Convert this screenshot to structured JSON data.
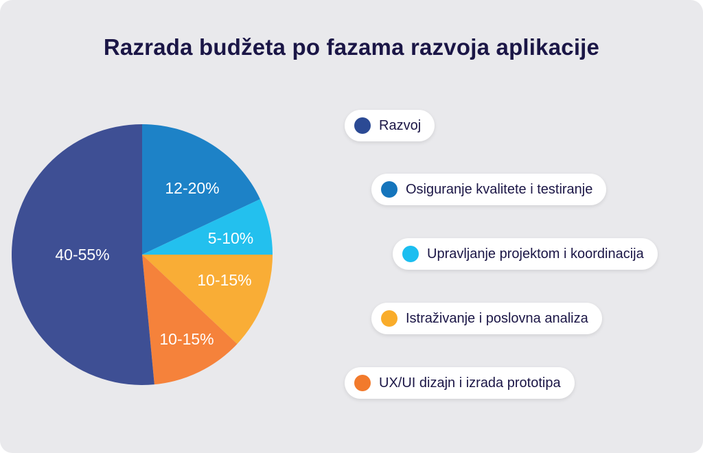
{
  "chart_data": {
    "type": "pie",
    "title": "Razrada budžeta po fazama razvoja aplikacije",
    "slices": [
      {
        "name": "Razvoj",
        "label": "40-55%",
        "value": 51.5,
        "color": "#3e4f94"
      },
      {
        "name": "Osiguranje kvalitete i testiranje",
        "label": "12-20%",
        "value": 18,
        "color": "#1d82c7"
      },
      {
        "name": "Upravljanje projektom i koordinacija",
        "label": "5-10%",
        "value": 7,
        "color": "#23c0ee"
      },
      {
        "name": "Istraživanje i poslovna analiza",
        "label": "10-15%",
        "value": 12,
        "color": "#f9ad36"
      },
      {
        "name": "UX/UI dizajn i izrada prototipa",
        "label": "10-15%",
        "value": 11.5,
        "color": "#f5823b"
      }
    ],
    "legend_placement": "right"
  },
  "legend": [
    {
      "label": "Razvoj",
      "color": "#2b4a94"
    },
    {
      "label": "Osiguranje kvalitete i testiranje",
      "color": "#1575bc"
    },
    {
      "label": "Upravljanje projektom i koordinacija",
      "color": "#1cbef0"
    },
    {
      "label": "Istraživanje i poslovna analiza",
      "color": "#f9ac2a"
    },
    {
      "label": "UX/UI dizajn i izrada prototipa",
      "color": "#f27a2c"
    }
  ]
}
